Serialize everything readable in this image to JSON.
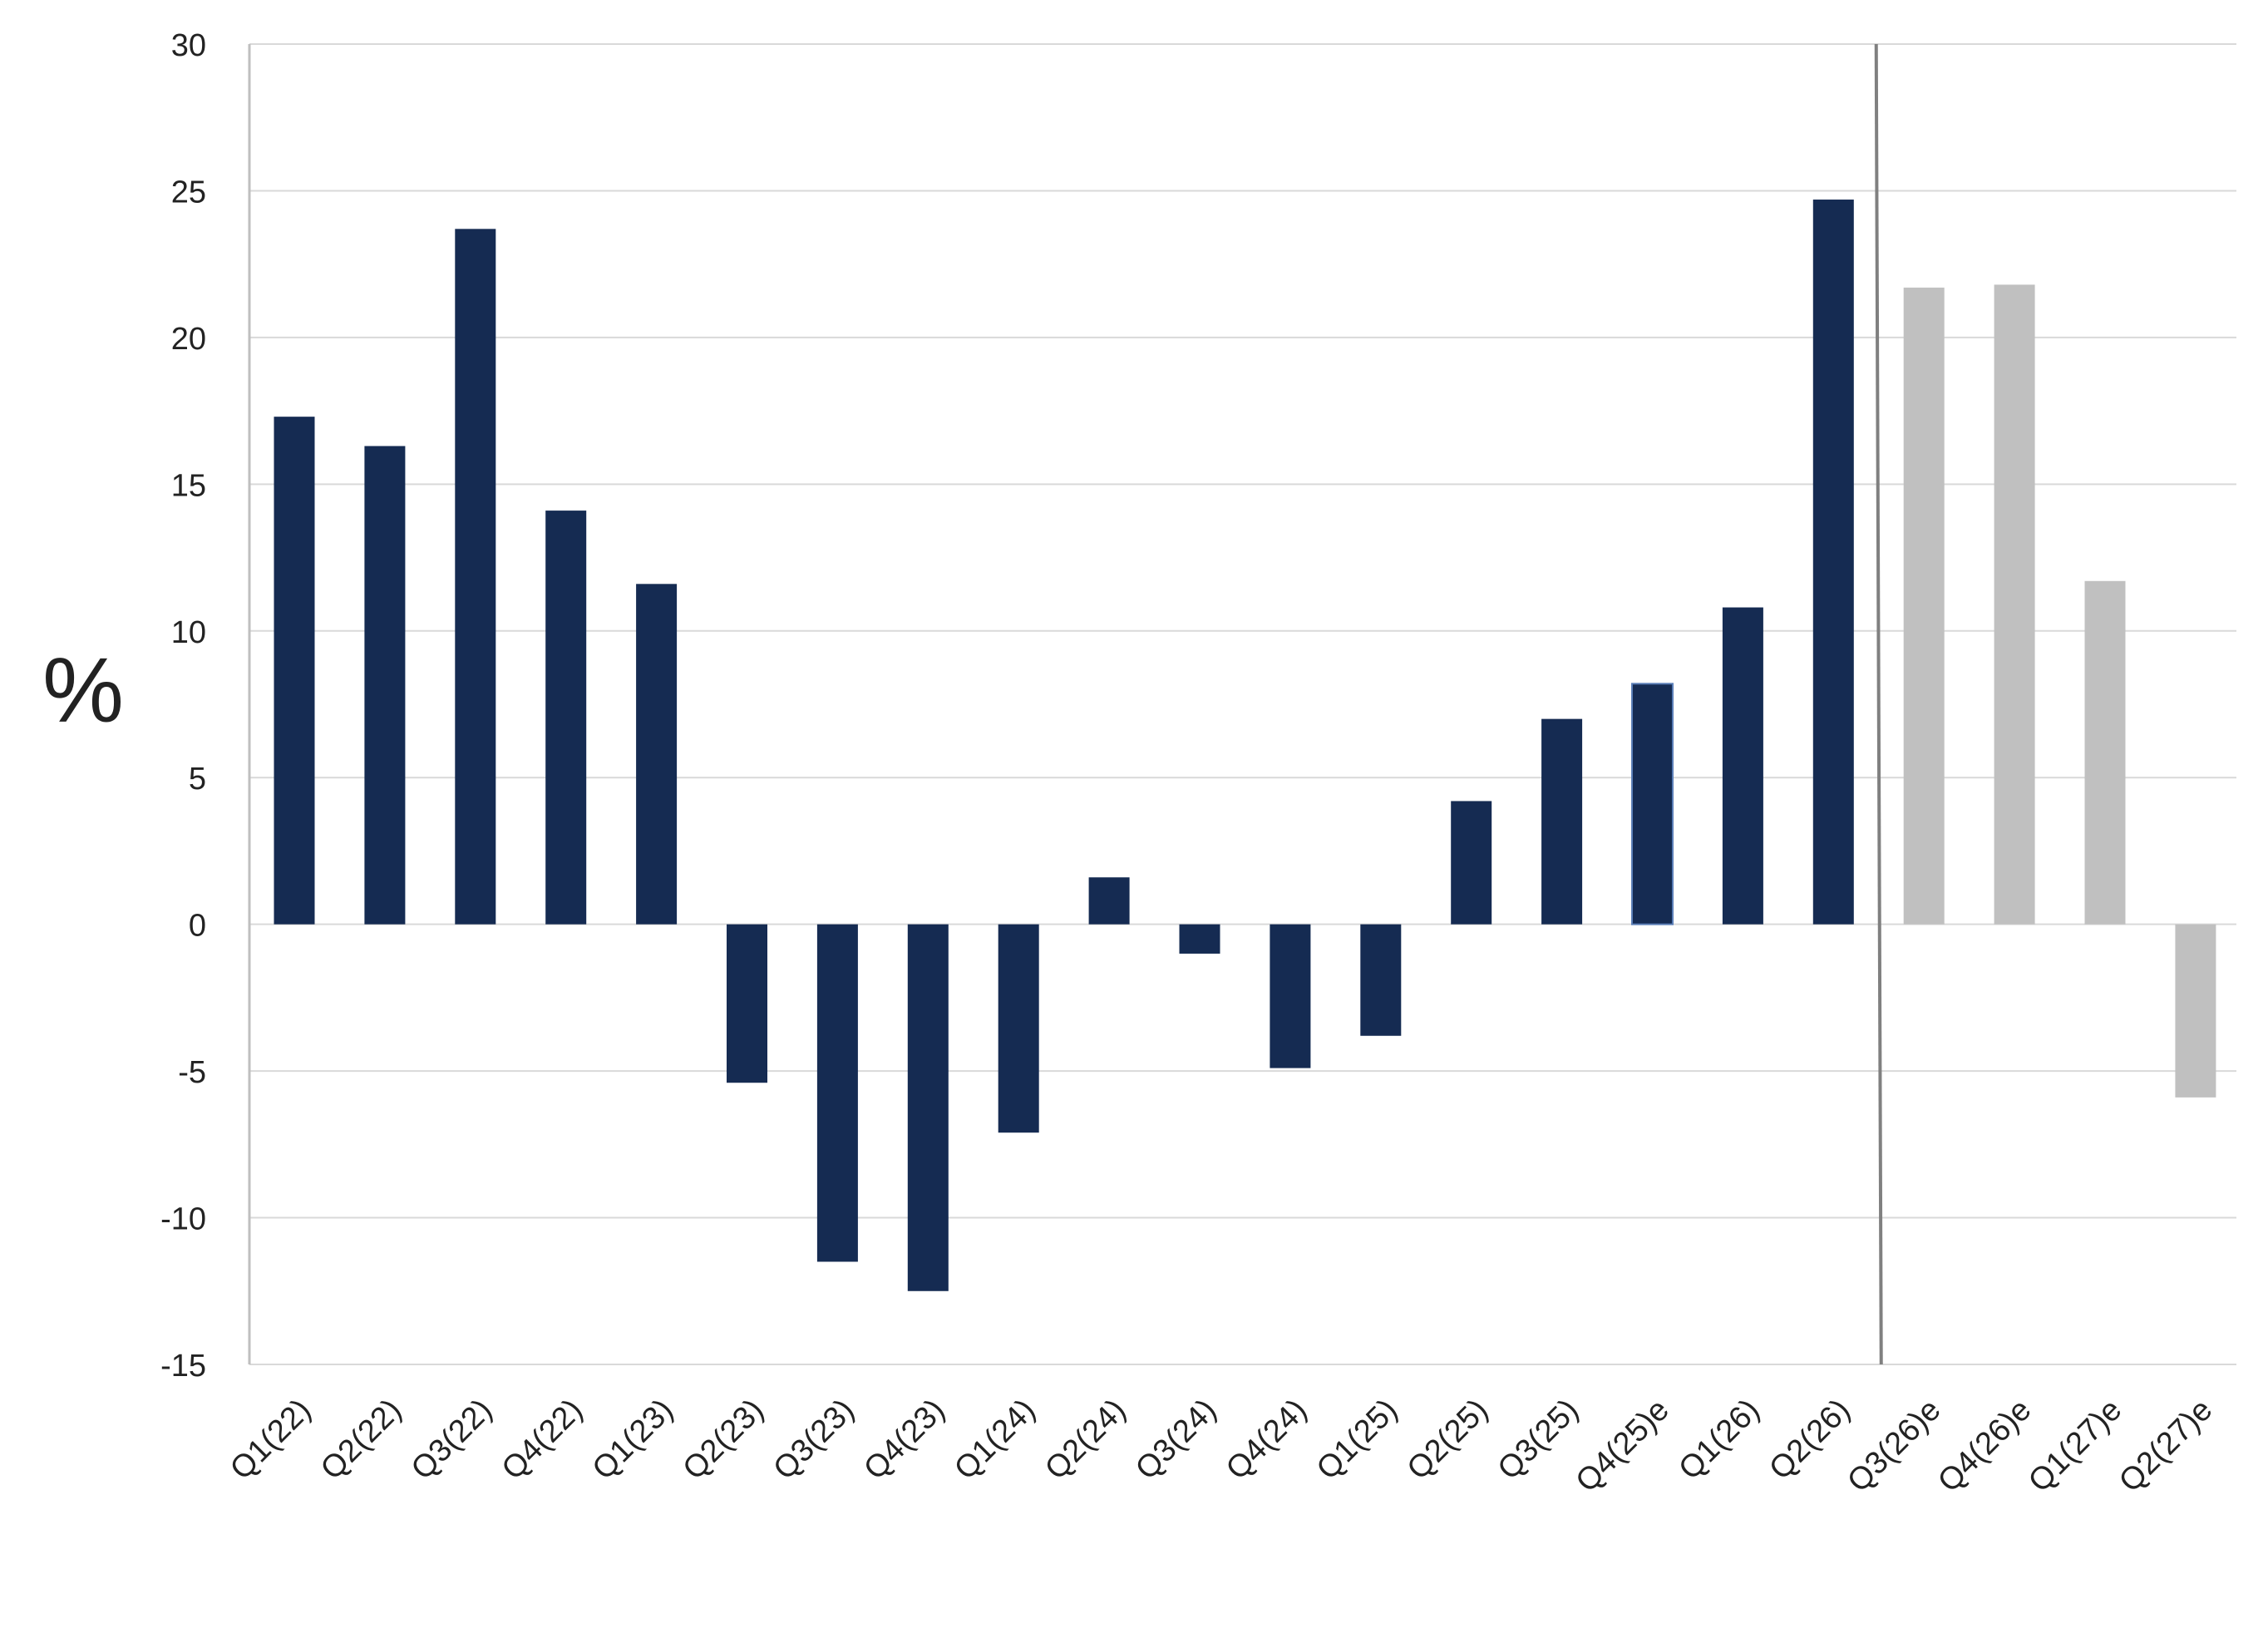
{
  "chart_data": {
    "type": "bar",
    "title": "",
    "xlabel": "",
    "ylabel": "%",
    "ylim": [
      -15,
      30
    ],
    "yticks": [
      30,
      25,
      20,
      15,
      10,
      5,
      0,
      -5,
      -10,
      -15
    ],
    "ytick_labels": [
      "30",
      "25",
      "20",
      "15",
      "10",
      "5",
      "0",
      "-5",
      "-10",
      "-15"
    ],
    "grid": true,
    "legend": "none",
    "categories": [
      "Q1(22)",
      "Q2(22)",
      "Q3(22)",
      "Q4(22)",
      "Q1(23)",
      "Q2(23)",
      "Q3(23)",
      "Q4(23)",
      "Q1(24)",
      "Q2(24)",
      "Q3(24)",
      "Q4(24)",
      "Q1(25)",
      "Q2(25)",
      "Q3(25)",
      "Q4(25)e",
      "Q1(26)",
      "Q2(26)",
      "Q3(26)e",
      "Q4(26)e",
      "Q1(27)e",
      "Q2(27)e"
    ],
    "values": [
      17.3,
      16.3,
      23.7,
      14.1,
      11.6,
      -5.4,
      -11.5,
      -12.5,
      -7.1,
      1.6,
      -1.0,
      -4.9,
      -3.8,
      4.2,
      7.0,
      8.2,
      10.8,
      24.7,
      21.7,
      21.8,
      11.7,
      -5.9
    ],
    "forecast": [
      false,
      false,
      false,
      false,
      false,
      false,
      false,
      false,
      false,
      false,
      false,
      false,
      false,
      false,
      false,
      false,
      false,
      false,
      true,
      true,
      true,
      true
    ],
    "divider_after_category": "Q2(26)",
    "colors": {
      "actual": "#152b52",
      "forecast": "#c0c0c0",
      "highlight_outline": "#5b7fb8",
      "grid": "#d9d9d9",
      "axis": "#bfbfbf",
      "divider": "#808080"
    }
  }
}
